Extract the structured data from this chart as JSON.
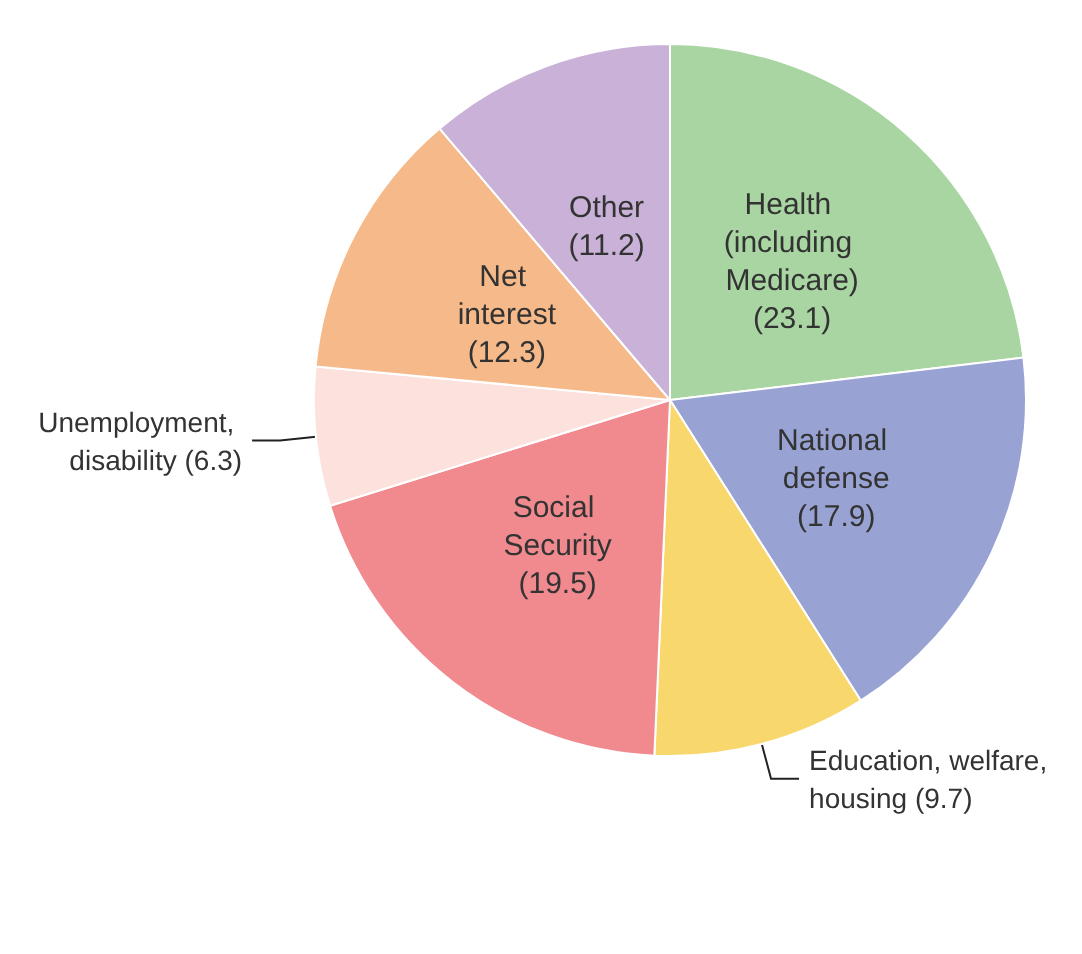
{
  "chart_data": {
    "type": "pie",
    "categories": [
      "Health (including Medicare)",
      "National defense",
      "Education, welfare, housing",
      "Social Security",
      "Unemployment, disability",
      "Net interest",
      "Other"
    ],
    "values": [
      23.1,
      17.9,
      9.7,
      19.5,
      6.3,
      12.3,
      11.2
    ],
    "colors": [
      "#a8d5a2",
      "#98a3d4",
      "#f8d86c",
      "#f08a8e",
      "#fce1dd",
      "#f5b98a",
      "#c9b1d8"
    ],
    "value_labels": [
      "(23.1)",
      "(17.9)",
      "(9.7)",
      "(19.5)",
      "(6.3)",
      "(12.3)",
      "(11.2)"
    ],
    "legend": false
  }
}
